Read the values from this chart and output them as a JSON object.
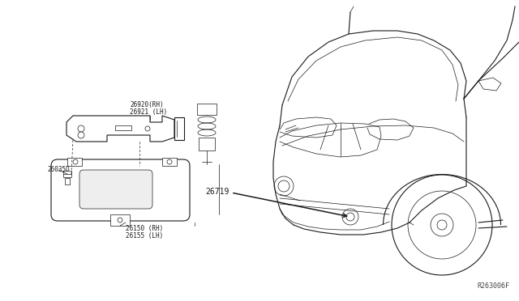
{
  "bg_color": "#ffffff",
  "line_color": "#1a1a1a",
  "fig_width": 6.4,
  "fig_height": 3.72,
  "dpi": 100,
  "labels": {
    "part1_line1": "26920(RH)",
    "part1_line2": "26921 (LH)",
    "part2": "26035D",
    "part3_line1": "26150 (RH)",
    "part3_line2": "26155 (LH)",
    "part4": "26719",
    "ref_code": "R263006F"
  },
  "font_size_labels": 5.5,
  "font_size_ref": 6.0
}
